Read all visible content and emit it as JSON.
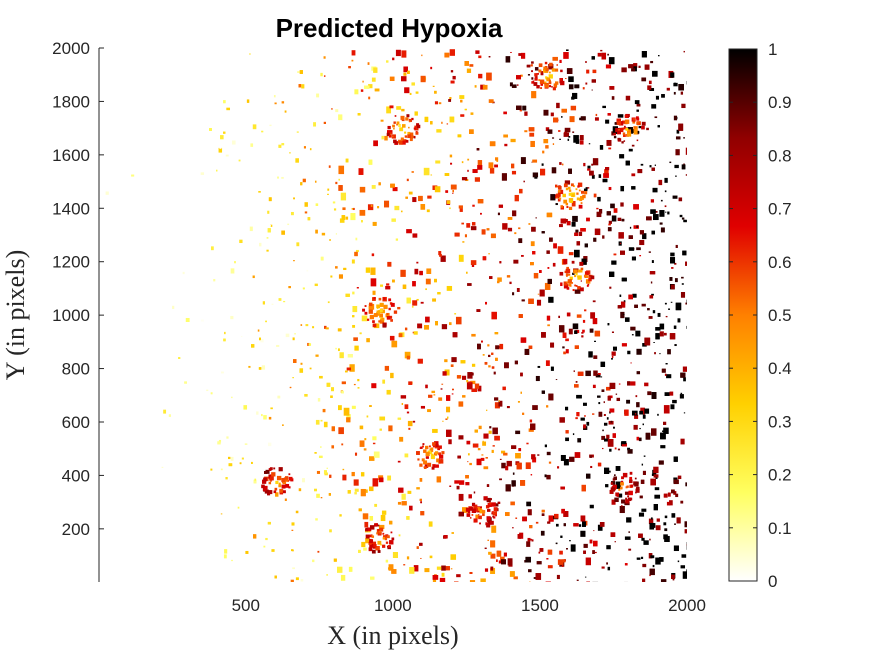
{
  "chart_data": {
    "type": "heatmap",
    "title": "Predicted Hypoxia",
    "xlabel": "X (in pixels)",
    "ylabel": "Y (in pixels)",
    "xlim": [
      1,
      2000
    ],
    "ylim": [
      1,
      2000
    ],
    "xticks": [
      500,
      1000,
      1500,
      2000
    ],
    "yticks": [
      200,
      400,
      600,
      800,
      1000,
      1200,
      1400,
      1600,
      1800,
      2000
    ],
    "colorbar": {
      "min": 0,
      "max": 1,
      "ticks": [
        0,
        0.1,
        0.2,
        0.3,
        0.4,
        0.5,
        0.6,
        0.7,
        0.8,
        0.9,
        1
      ],
      "colormap": "hot (reversed)",
      "colors": [
        "#ffffff",
        "#ffff60",
        "#ffd000",
        "#ff8000",
        "#e00000",
        "#900000",
        "#000000"
      ]
    },
    "grid": false,
    "description_of_values": "Sparse speckled cell-like regions; low values (white/yellow) dominate the left side, high values (dark red/black) dominate the right side, with bright yellow-orange hotspots near vessel centres.",
    "hotspots": [
      {
        "x": 1120,
        "y": 480,
        "value": 0.3
      },
      {
        "x": 1600,
        "y": 1450,
        "value": 0.25
      },
      {
        "x": 1800,
        "y": 1700,
        "value": 0.35
      },
      {
        "x": 1620,
        "y": 1150,
        "value": 0.3
      },
      {
        "x": 950,
        "y": 170,
        "value": 0.4
      },
      {
        "x": 1300,
        "y": 270,
        "value": 0.4
      },
      {
        "x": 1030,
        "y": 1700,
        "value": 0.3
      },
      {
        "x": 950,
        "y": 1020,
        "value": 0.3
      },
      {
        "x": 600,
        "y": 380,
        "value": 0.4
      },
      {
        "x": 1780,
        "y": 360,
        "value": 0.45
      },
      {
        "x": 1520,
        "y": 1900,
        "value": 0.3
      }
    ]
  }
}
